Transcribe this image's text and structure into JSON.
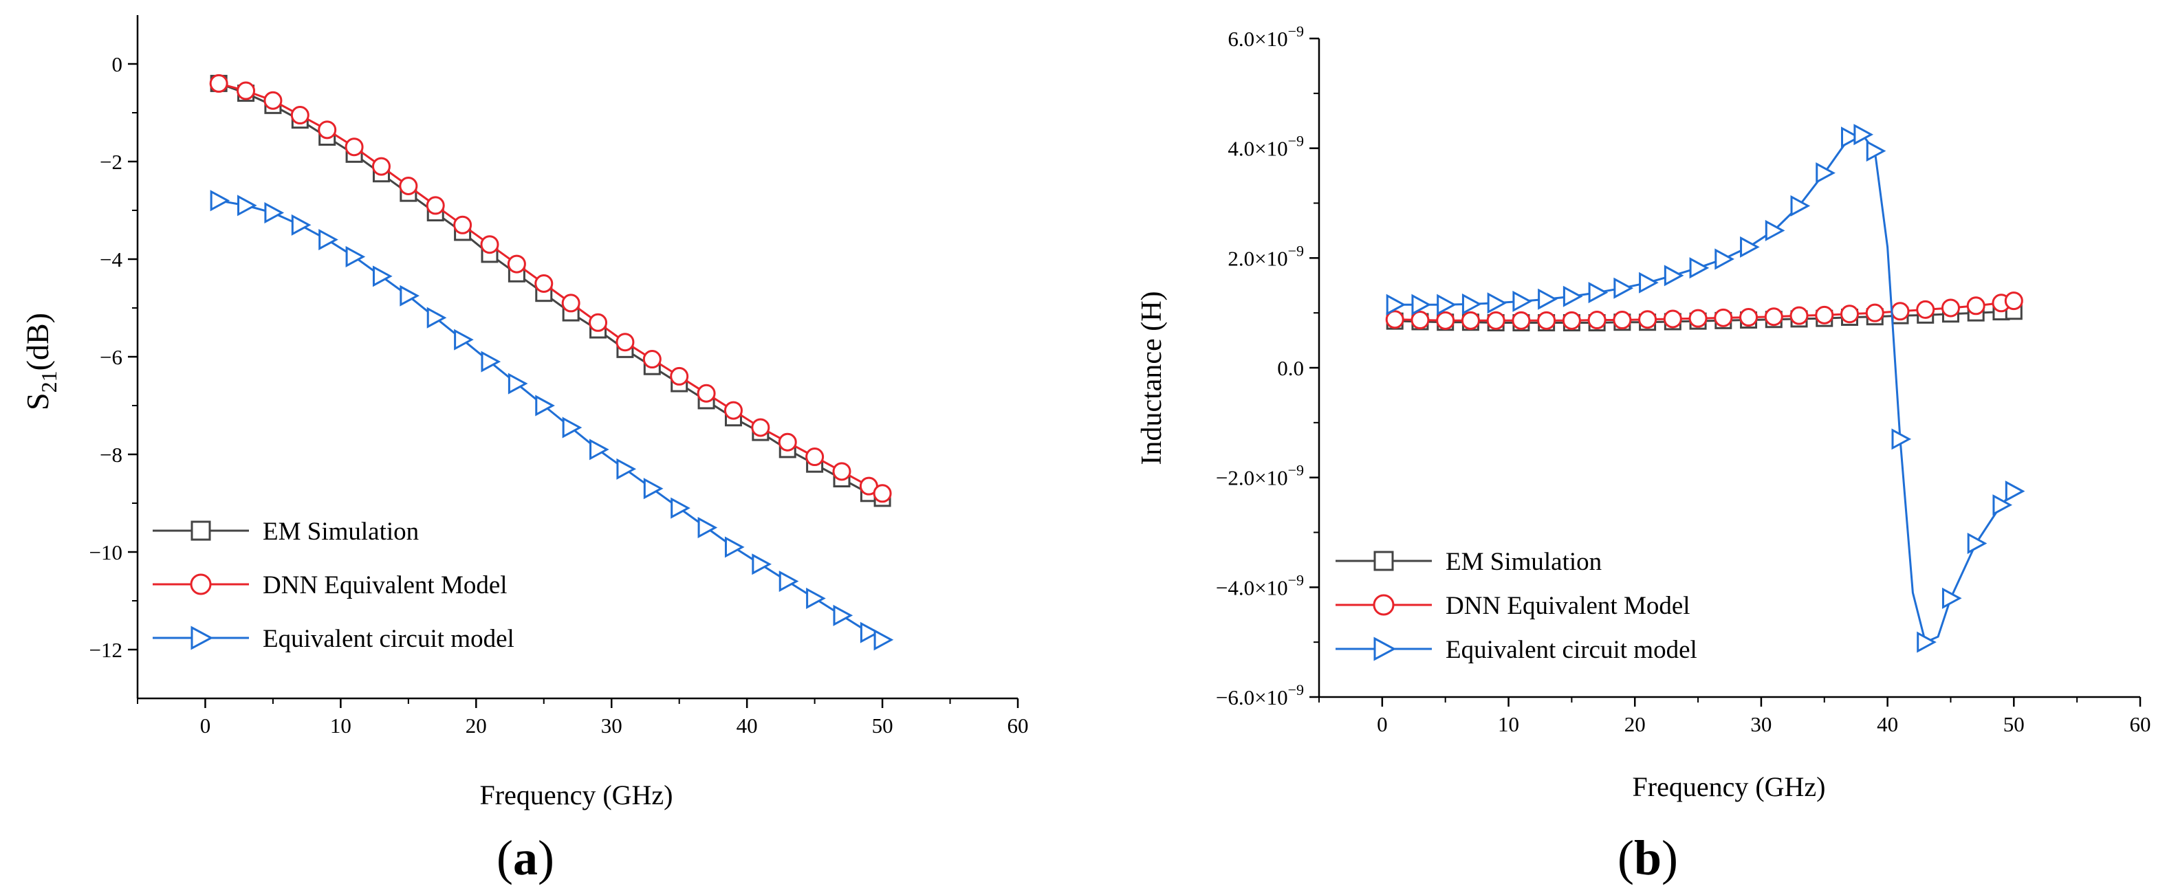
{
  "chart_data": [
    {
      "type": "line",
      "panel_label": "a",
      "title": "",
      "xlabel": "Frequency (GHz)",
      "ylabel_main": "S",
      "ylabel_sub": "21",
      "ylabel_unit": "(dB)",
      "xlim": [
        -5,
        60
      ],
      "ylim": [
        -13,
        1
      ],
      "xticks": [
        0,
        10,
        20,
        30,
        40,
        50,
        60
      ],
      "xtick_labels": [
        "0",
        "10",
        "20",
        "30",
        "40",
        "50",
        "60"
      ],
      "yticks": [
        0,
        -2,
        -4,
        -6,
        -8,
        -10,
        -12
      ],
      "ytick_labels": [
        "0",
        "−2",
        "−4",
        "−6",
        "−8",
        "−10",
        "−12"
      ],
      "legend_position": "bottom-left",
      "x": [
        1,
        3,
        5,
        7,
        9,
        11,
        13,
        15,
        17,
        19,
        21,
        23,
        25,
        27,
        29,
        31,
        33,
        35,
        37,
        39,
        41,
        43,
        45,
        47,
        49,
        50
      ],
      "series": [
        {
          "name": "EM Simulation",
          "color": "#444444",
          "marker": "square",
          "values": [
            -0.4,
            -0.6,
            -0.85,
            -1.15,
            -1.5,
            -1.85,
            -2.25,
            -2.65,
            -3.05,
            -3.45,
            -3.9,
            -4.3,
            -4.7,
            -5.1,
            -5.45,
            -5.85,
            -6.2,
            -6.55,
            -6.9,
            -7.25,
            -7.55,
            -7.9,
            -8.2,
            -8.5,
            -8.8,
            -8.9
          ]
        },
        {
          "name": "DNN Equivalent Model",
          "color": "#e8232a",
          "marker": "circle",
          "values": [
            -0.4,
            -0.55,
            -0.75,
            -1.05,
            -1.35,
            -1.7,
            -2.1,
            -2.5,
            -2.9,
            -3.3,
            -3.7,
            -4.1,
            -4.5,
            -4.9,
            -5.3,
            -5.7,
            -6.05,
            -6.4,
            -6.75,
            -7.1,
            -7.45,
            -7.75,
            -8.05,
            -8.35,
            -8.65,
            -8.8
          ]
        },
        {
          "name": "Equivalent circuit model",
          "color": "#1f6fd6",
          "marker": "triangle-right",
          "values": [
            -2.8,
            -2.9,
            -3.05,
            -3.3,
            -3.6,
            -3.95,
            -4.35,
            -4.75,
            -5.2,
            -5.65,
            -6.1,
            -6.55,
            -7.0,
            -7.45,
            -7.9,
            -8.3,
            -8.7,
            -9.1,
            -9.5,
            -9.9,
            -10.25,
            -10.6,
            -10.95,
            -11.3,
            -11.65,
            -11.8
          ]
        }
      ]
    },
    {
      "type": "line",
      "panel_label": "b",
      "title": "",
      "xlabel": "Frequency (GHz)",
      "ylabel": "Inductance (H)",
      "xlim": [
        -5,
        60
      ],
      "ylim": [
        -6e-09,
        6e-09
      ],
      "xticks": [
        0,
        10,
        20,
        30,
        40,
        50,
        60
      ],
      "xtick_labels": [
        "0",
        "10",
        "20",
        "30",
        "40",
        "50",
        "60"
      ],
      "yticks": [
        6e-09,
        4e-09,
        2e-09,
        0,
        -2e-09,
        -4e-09,
        -6e-09
      ],
      "ytick_labels": [
        {
          "mant": "6.0×10",
          "exp": "−9"
        },
        {
          "mant": "4.0×10",
          "exp": "−9"
        },
        {
          "mant": "2.0×10",
          "exp": "−9"
        },
        {
          "mant": "0.0",
          "exp": ""
        },
        {
          "mant": "−2.0×10",
          "exp": "−9"
        },
        {
          "mant": "−4.0×10",
          "exp": "−9"
        },
        {
          "mant": "−6.0×10",
          "exp": "−9"
        }
      ],
      "legend_position": "bottom-left",
      "series": [
        {
          "name": "EM Simulation",
          "color": "#444444",
          "marker": "square",
          "x": [
            1,
            3,
            5,
            7,
            9,
            11,
            13,
            15,
            17,
            19,
            21,
            23,
            25,
            27,
            29,
            31,
            33,
            35,
            37,
            39,
            41,
            43,
            45,
            47,
            49,
            50
          ],
          "values": [
            8.5e-10,
            8.4e-10,
            8.3e-10,
            8.3e-10,
            8.2e-10,
            8.2e-10,
            8.2e-10,
            8.2e-10,
            8.2e-10,
            8.3e-10,
            8.3e-10,
            8.4e-10,
            8.5e-10,
            8.6e-10,
            8.7e-10,
            8.8e-10,
            8.9e-10,
            9e-10,
            9.2e-10,
            9.3e-10,
            9.5e-10,
            9.6e-10,
            9.8e-10,
            1e-09,
            1.02e-09,
            1.03e-09
          ]
        },
        {
          "name": "DNN Equivalent Model",
          "color": "#e8232a",
          "marker": "circle",
          "x": [
            1,
            3,
            5,
            7,
            9,
            11,
            13,
            15,
            17,
            19,
            21,
            23,
            25,
            27,
            29,
            31,
            33,
            35,
            37,
            39,
            41,
            43,
            45,
            47,
            49,
            50
          ],
          "values": [
            8.8e-10,
            8.7e-10,
            8.6e-10,
            8.6e-10,
            8.6e-10,
            8.6e-10,
            8.6e-10,
            8.6e-10,
            8.7e-10,
            8.7e-10,
            8.8e-10,
            8.9e-10,
            9e-10,
            9.1e-10,
            9.2e-10,
            9.3e-10,
            9.5e-10,
            9.6e-10,
            9.8e-10,
            1e-09,
            1.03e-09,
            1.06e-09,
            1.09e-09,
            1.13e-09,
            1.18e-09,
            1.22e-09
          ]
        },
        {
          "name": "Equivalent circuit model",
          "color": "#1f6fd6",
          "marker": "triangle-right",
          "x": [
            1,
            3,
            5,
            7,
            9,
            11,
            13,
            15,
            17,
            19,
            21,
            23,
            25,
            27,
            29,
            31,
            33,
            35,
            37,
            38,
            39,
            40,
            41,
            42,
            43,
            44,
            45,
            47,
            49,
            50
          ],
          "marker_x": [
            1,
            3,
            5,
            7,
            9,
            11,
            13,
            15,
            17,
            19,
            21,
            23,
            25,
            27,
            29,
            31,
            33,
            35,
            37,
            38,
            39,
            41,
            43,
            45,
            47,
            49,
            50
          ],
          "values": [
            1.15e-09,
            1.15e-09,
            1.15e-09,
            1.16e-09,
            1.18e-09,
            1.21e-09,
            1.25e-09,
            1.3e-09,
            1.37e-09,
            1.45e-09,
            1.55e-09,
            1.68e-09,
            1.82e-09,
            1.98e-09,
            2.2e-09,
            2.5e-09,
            2.95e-09,
            3.55e-09,
            4.2e-09,
            4.25e-09,
            3.95e-09,
            2.2e-09,
            -1.3e-09,
            -4.1e-09,
            -5e-09,
            -4.9e-09,
            -4.2e-09,
            -3.2e-09,
            -2.5e-09,
            -2.25e-09
          ],
          "marker_values": [
            1.15e-09,
            1.15e-09,
            1.15e-09,
            1.16e-09,
            1.18e-09,
            1.21e-09,
            1.25e-09,
            1.3e-09,
            1.37e-09,
            1.45e-09,
            1.55e-09,
            1.68e-09,
            1.82e-09,
            1.98e-09,
            2.2e-09,
            2.5e-09,
            2.95e-09,
            3.55e-09,
            4.2e-09,
            4.25e-09,
            3.95e-09,
            -1.3e-09,
            -5e-09,
            -4.2e-09,
            -3.2e-09,
            -2.5e-09,
            -2.25e-09
          ]
        }
      ]
    }
  ]
}
